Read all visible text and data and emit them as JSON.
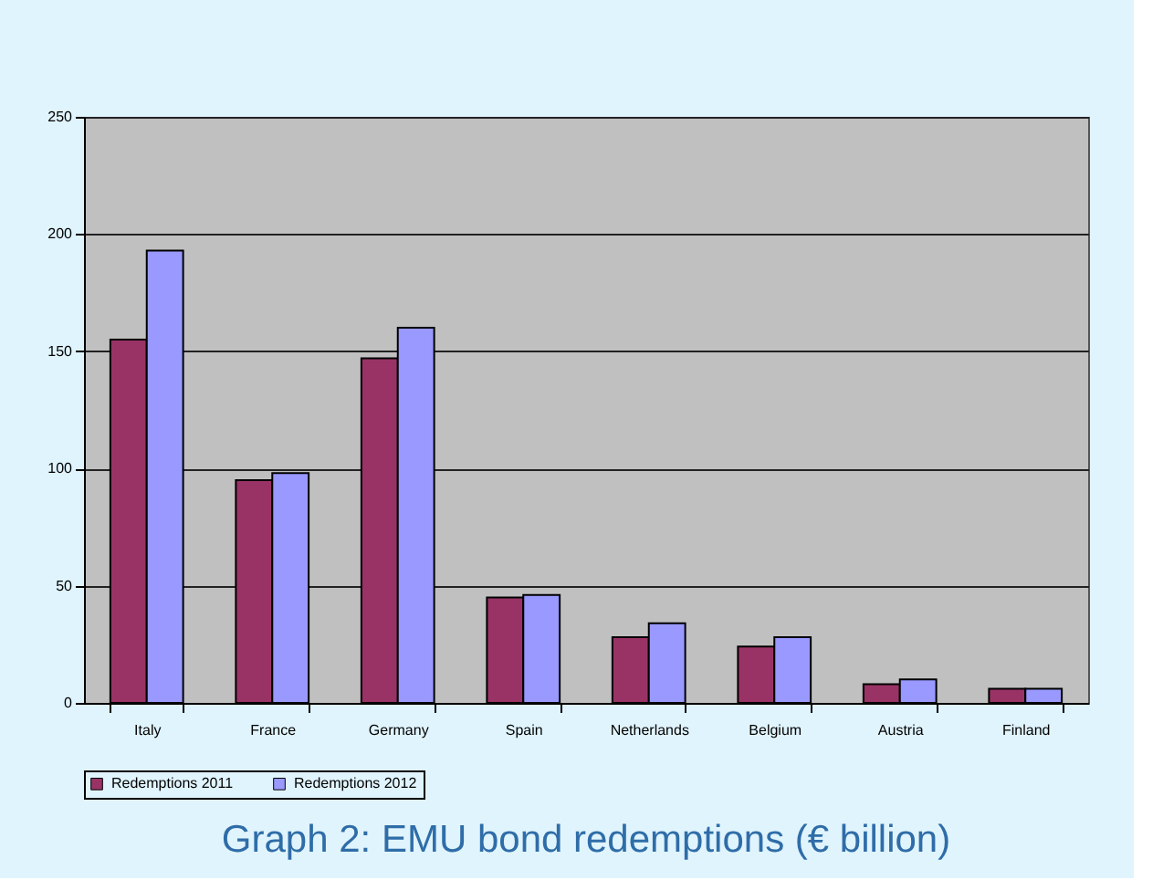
{
  "chart_data": {
    "type": "bar",
    "title": "Graph 2: EMU bond redemptions (€ billion)",
    "categories": [
      "Italy",
      "France",
      "Germany",
      "Spain",
      "Netherlands",
      "Belgium",
      "Austria",
      "Finland"
    ],
    "series": [
      {
        "name": "Redemptions 2011",
        "color": "#993366",
        "values": [
          155,
          95,
          147,
          45,
          28,
          24,
          8,
          6
        ]
      },
      {
        "name": "Redemptions 2012",
        "color": "#9999ff",
        "values": [
          193,
          98,
          160,
          46,
          34,
          28,
          10,
          6
        ]
      }
    ],
    "ylim": [
      0,
      250
    ],
    "yticks": [
      0,
      50,
      100,
      150,
      200,
      250
    ],
    "grid": "y",
    "legend": "bottom"
  }
}
